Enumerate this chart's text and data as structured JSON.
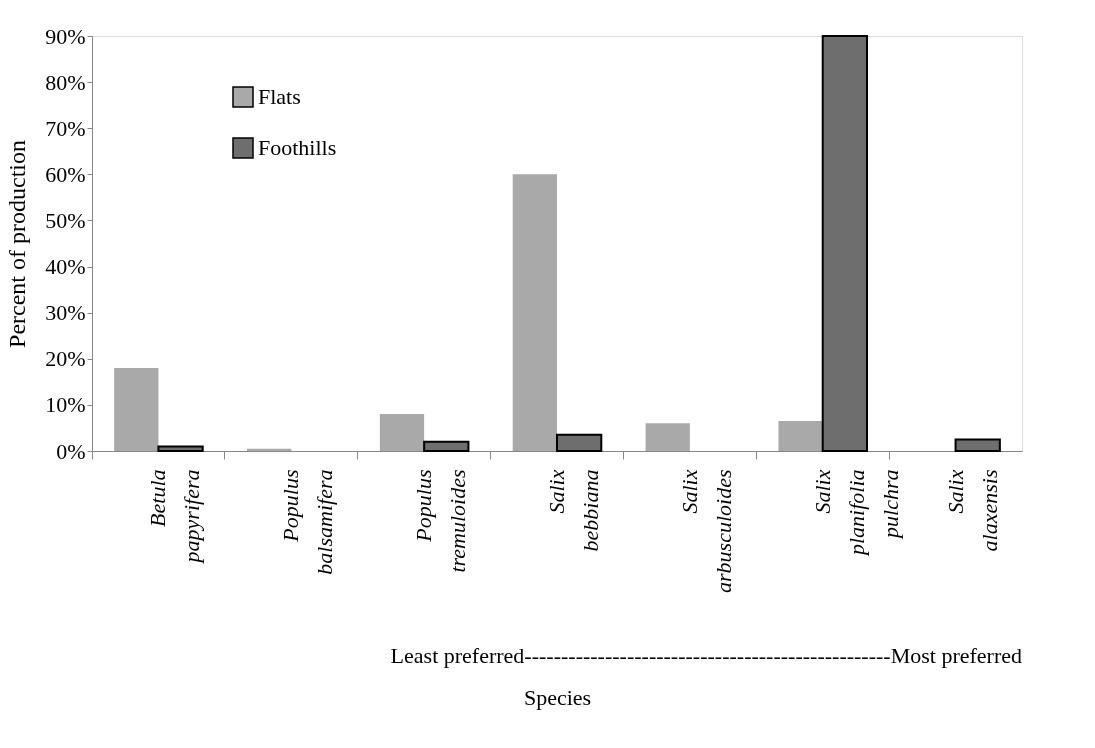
{
  "chart_data": {
    "type": "bar",
    "xlabel": "Species",
    "ylabel": "Percent of production",
    "categories": [
      "Betula papyrifera",
      "Populus balsamifera",
      "Populus tremuloides",
      "Salix bebbiana",
      "Salix arbusculoides",
      "Salix planifolia pulchra",
      "Salix alaxensis"
    ],
    "series": [
      {
        "name": "Flats",
        "color": "#a9a9a9",
        "values": [
          18,
          0.5,
          8,
          60,
          6,
          6.5,
          null
        ]
      },
      {
        "name": "Foothills",
        "color": "#6e6e6e",
        "values": [
          1,
          null,
          2,
          3.5,
          null,
          90,
          2.5
        ]
      }
    ],
    "ylim": [
      0,
      90
    ],
    "yticks": [
      {
        "value": 0,
        "label": "0%"
      },
      {
        "value": 10,
        "label": "10%"
      },
      {
        "value": 20,
        "label": "20%"
      },
      {
        "value": 30,
        "label": "30%"
      },
      {
        "value": 40,
        "label": "40%"
      },
      {
        "value": 50,
        "label": "50%"
      },
      {
        "value": 60,
        "label": "60%"
      },
      {
        "value": 70,
        "label": "70%"
      },
      {
        "value": 80,
        "label": "80%"
      },
      {
        "value": 90,
        "label": "90%"
      }
    ],
    "annotations": [
      "Least preferred--------------------------------------------------Most preferred"
    ],
    "legend": "top left",
    "grid": false
  }
}
